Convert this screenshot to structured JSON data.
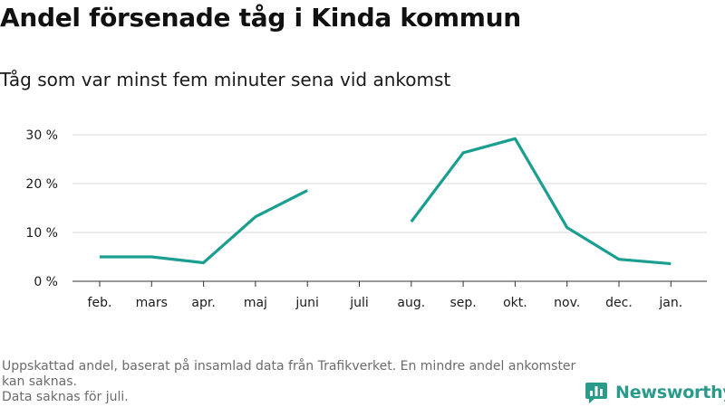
{
  "header": {
    "title": "Andel försenade tåg i Kinda kommun",
    "subtitle": "Tåg som var minst fem minuter sena vid ankomst"
  },
  "chart_data": {
    "type": "line",
    "categories": [
      "feb.",
      "mars",
      "apr.",
      "maj",
      "juni",
      "juli",
      "aug.",
      "sep.",
      "okt.",
      "nov.",
      "dec.",
      "jan."
    ],
    "series": [
      {
        "values": [
          5.0,
          5.0,
          3.8,
          13.2,
          18.6,
          null,
          12.2,
          26.3,
          29.2,
          11.0,
          4.5,
          3.6
        ]
      }
    ],
    "yticks": [
      0,
      10,
      20,
      30
    ],
    "ytick_labels": [
      "0 %",
      "10 %",
      "20 %",
      "30 %"
    ],
    "ylim": [
      0,
      30
    ],
    "grid": true,
    "line_color": "#1a9e90"
  },
  "footer": {
    "note_line1": "Uppskattad andel, baserat på insamlad data från Trafikverket. En mindre andel ankomster kan saknas.",
    "note_line2": "Data saknas för juli.",
    "brand": "Newsworthy",
    "logo_icon": "newsworthy-chart-logo-icon",
    "brand_color": "#2a9a8a"
  }
}
